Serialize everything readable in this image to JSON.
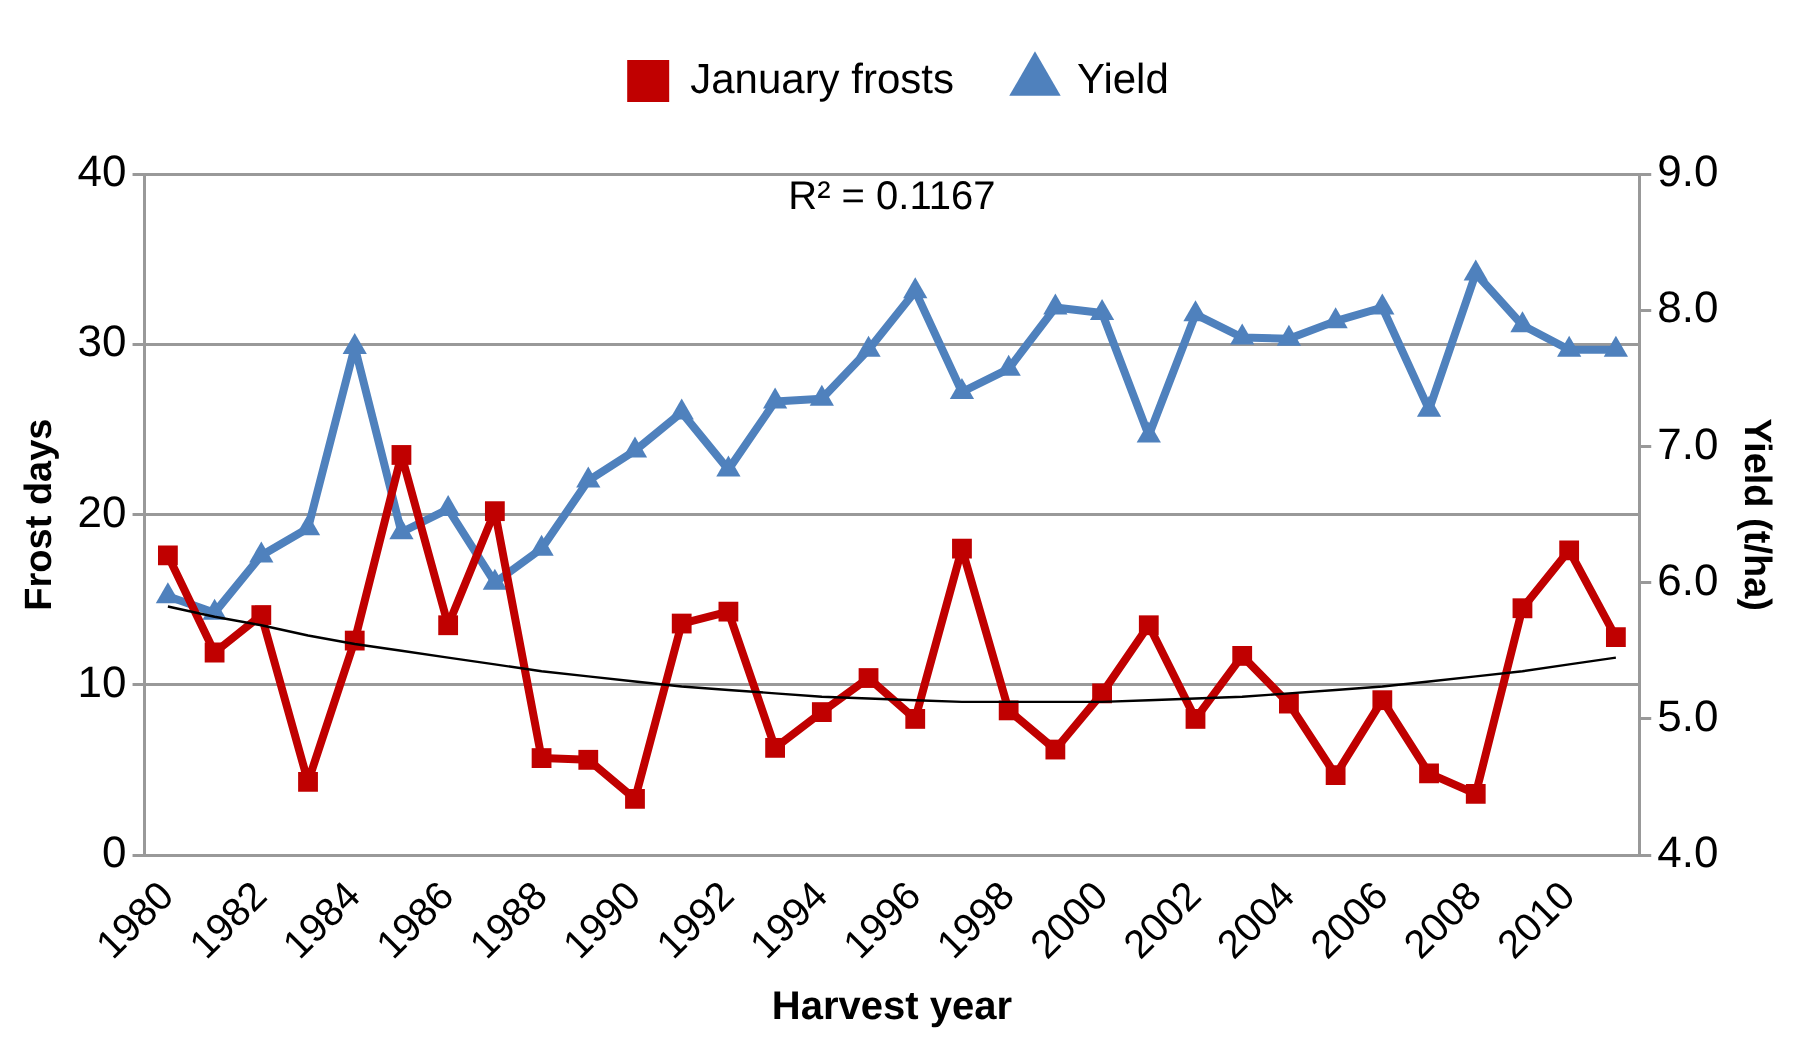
{
  "chart_data": {
    "type": "line",
    "xlabel": "Harvest year",
    "ylabel": "Frost days",
    "y2label": "Yield (t/ha)",
    "categories": [
      "1980",
      null,
      "1982",
      null,
      "1984",
      null,
      "1986",
      null,
      "1988",
      null,
      "1990",
      null,
      "1992",
      null,
      "1994",
      null,
      "1996",
      null,
      "1998",
      null,
      "2000",
      null,
      "2002",
      null,
      "2004",
      null,
      "2006",
      null,
      "2008",
      null,
      "2010",
      null
    ],
    "series": [
      {
        "name": "January frosts",
        "color": "#c00000",
        "marker": "square",
        "values": [
          17.6,
          11.9,
          14.1,
          4.3,
          12.6,
          23.5,
          13.5,
          20.2,
          5.7,
          5.6,
          3.3,
          13.6,
          14.3,
          6.3,
          8.4,
          10.4,
          8.0,
          18.0,
          8.5,
          6.2,
          9.5,
          13.5,
          8.0,
          11.7,
          8.9,
          4.7,
          9.1,
          4.8,
          3.6,
          14.5,
          17.9,
          12.8
        ]
      },
      {
        "name": "Yield",
        "color": "#4f81bd",
        "marker": "triangle",
        "axis": "y2",
        "values": [
          5.9,
          5.78,
          6.2,
          6.4,
          7.73,
          6.37,
          6.54,
          6.0,
          6.25,
          6.75,
          6.97,
          7.25,
          6.83,
          7.33,
          7.35,
          7.71,
          8.14,
          7.4,
          7.57,
          8.02,
          7.98,
          7.08,
          7.97,
          7.8,
          7.79,
          7.92,
          8.02,
          7.27,
          8.27,
          7.89,
          7.71,
          7.71
        ]
      },
      {
        "color": "#000000",
        "marker": "none",
        "values": [
          14.6,
          14.0,
          13.5,
          12.9,
          12.4,
          12.0,
          11.6,
          11.2,
          10.8,
          10.5,
          10.2,
          9.9,
          9.7,
          9.5,
          9.3,
          9.2,
          9.1,
          9.0,
          9.0,
          9.0,
          9.0,
          9.1,
          9.2,
          9.3,
          9.5,
          9.7,
          9.9,
          10.2,
          10.5,
          10.8,
          11.2,
          11.6
        ]
      }
    ],
    "ylim": [
      0,
      40
    ],
    "yticks": [
      0,
      10,
      20,
      30,
      40
    ],
    "y2lim": [
      4,
      9
    ],
    "y2ticks": [
      {
        "value": 4,
        "label": "4.0"
      },
      {
        "value": 5,
        "label": "5.0"
      },
      {
        "value": 6,
        "label": "6.0"
      },
      {
        "value": 7,
        "label": "7.0"
      },
      {
        "value": 8,
        "label": "8.0"
      },
      {
        "value": 9,
        "label": "9.0"
      }
    ],
    "grid": "y",
    "legend": "top",
    "annotations": [
      "R² = 0.1167"
    ]
  }
}
